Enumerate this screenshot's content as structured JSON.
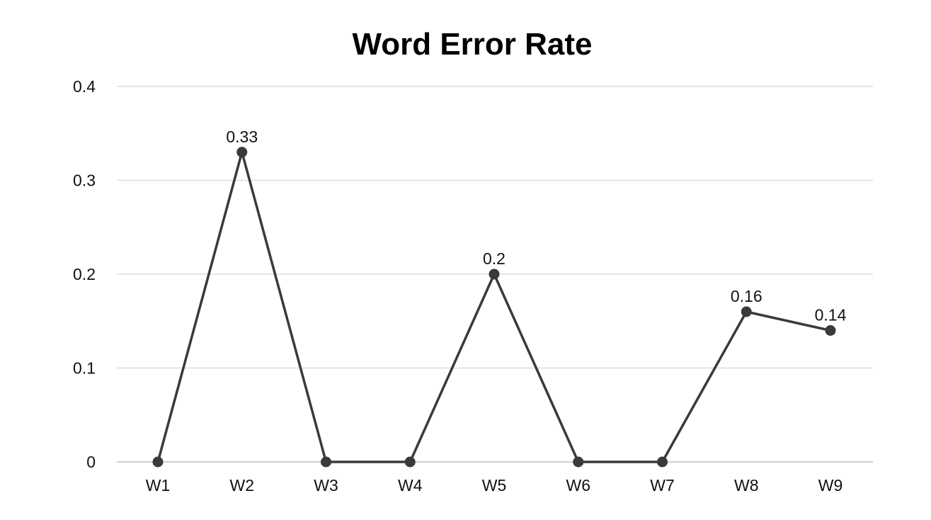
{
  "chart_data": {
    "type": "line",
    "title": "Word Error Rate",
    "xlabel": "",
    "ylabel": "",
    "categories": [
      "W1",
      "W2",
      "W3",
      "W4",
      "W5",
      "W6",
      "W7",
      "W8",
      "W9"
    ],
    "series": [
      {
        "values": [
          0,
          0.33,
          0,
          0,
          0.2,
          0,
          0,
          0.16,
          0.14
        ],
        "data_labels": [
          "",
          "0.33",
          "",
          "",
          "0.2",
          "",
          "",
          "0.16",
          "0.14"
        ]
      }
    ],
    "ylim": [
      0,
      0.4
    ],
    "yticks": [
      0,
      0.1,
      0.2,
      0.3,
      0.4
    ],
    "ytick_labels": [
      "0",
      "0.1",
      "0.2",
      "0.3",
      "0.4"
    ],
    "grid": true,
    "legend": "none",
    "colors": {
      "line": "#3a3a3a",
      "marker": "#3a3a3a",
      "grid": "#dddddd",
      "baseline": "#c7d0d6"
    }
  }
}
